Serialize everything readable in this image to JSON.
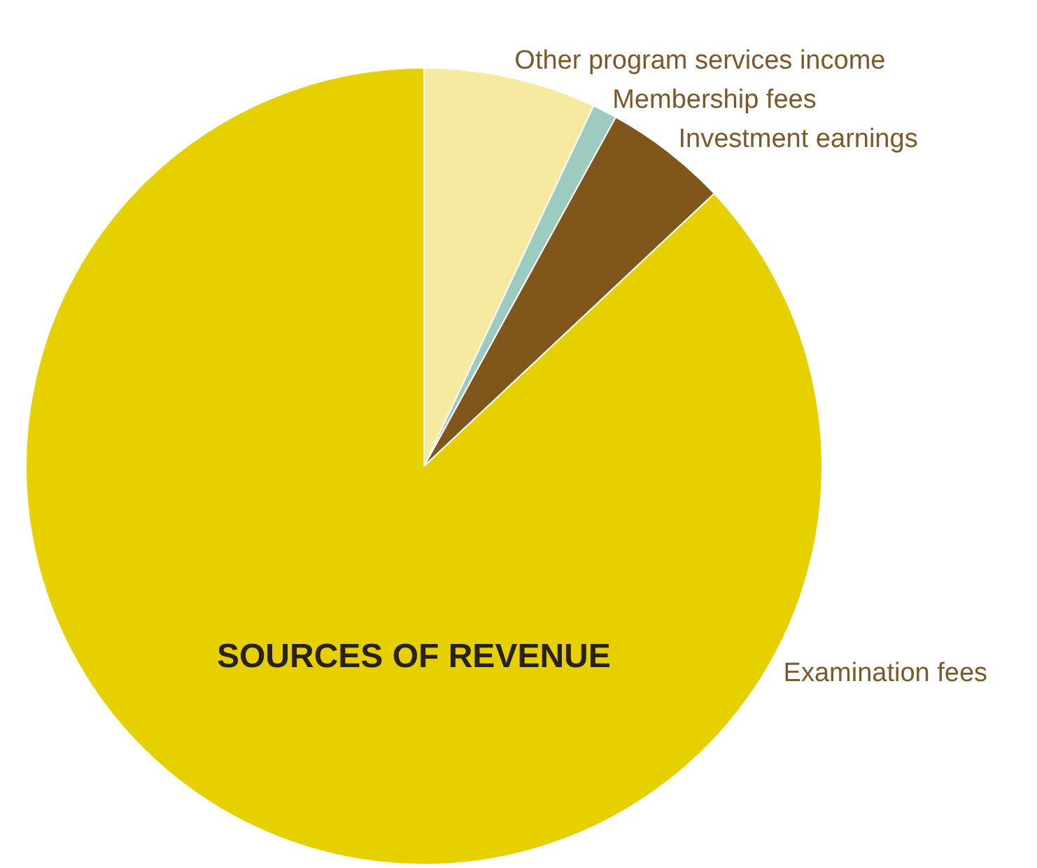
{
  "chart_data": {
    "type": "pie",
    "title": "SOURCES OF REVENUE",
    "categories": [
      "Other program services income",
      "Membership fees",
      "Investment earnings",
      "Examination fees"
    ],
    "values": [
      7,
      1,
      5,
      87
    ],
    "colors": [
      "#f5eaa0",
      "#9ccbc0",
      "#80561b",
      "#e6d000"
    ],
    "legend": false
  }
}
